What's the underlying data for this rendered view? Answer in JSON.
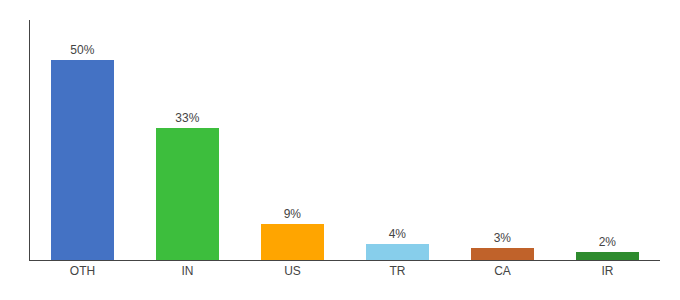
{
  "chart_data": {
    "type": "bar",
    "categories": [
      "OTH",
      "IN",
      "US",
      "TR",
      "CA",
      "IR"
    ],
    "values": [
      50,
      33,
      9,
      4,
      3,
      2
    ],
    "value_labels": [
      "50%",
      "33%",
      "9%",
      "4%",
      "3%",
      "2%"
    ],
    "colors": [
      "#4472C4",
      "#3DBE3D",
      "#FFA500",
      "#87CEEB",
      "#C0622A",
      "#2E8B2E"
    ],
    "ylim": [
      0,
      60
    ],
    "data_labels": true,
    "tick_labels": "x",
    "grid": false
  }
}
